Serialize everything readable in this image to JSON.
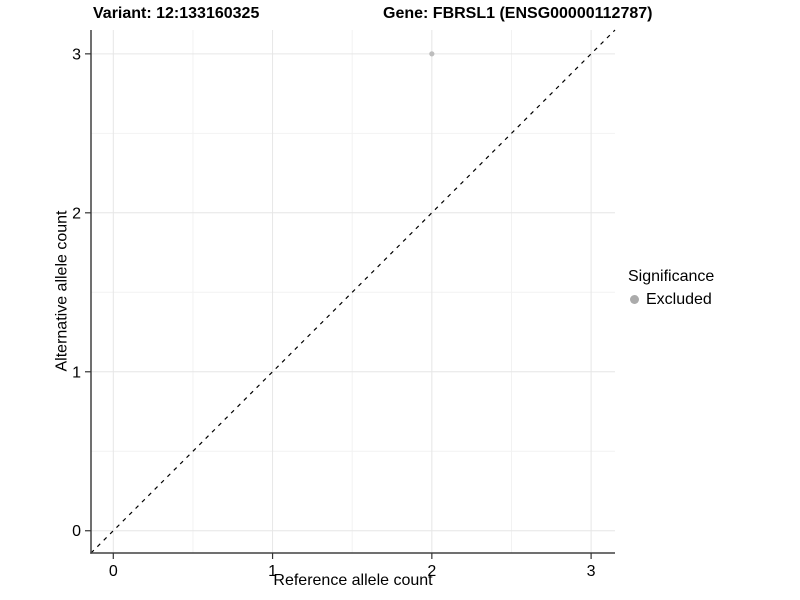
{
  "chart_data": {
    "type": "scatter",
    "title_left": "Variant: 12:133160325",
    "title_right": "Gene: FBRSL1 (ENSG00000112787)",
    "xlabel": "Reference allele count",
    "ylabel": "Alternative allele count",
    "xlim": [
      -0.14,
      3.15
    ],
    "ylim": [
      -0.14,
      3.15
    ],
    "x_major_ticks": [
      0,
      1,
      2,
      3
    ],
    "y_major_ticks": [
      0,
      1,
      2,
      3
    ],
    "x_minor_ticks": [
      0.5,
      1.5,
      2.5
    ],
    "y_minor_ticks": [
      0.5,
      1.5,
      2.5
    ],
    "grid": true,
    "reference_line": {
      "equation": "y = x",
      "style": "dashed",
      "color": "#000000"
    },
    "series": [
      {
        "name": "Excluded",
        "marker": "circle",
        "color": "#bdbdbd",
        "points": [
          {
            "x": 2,
            "y": 3
          }
        ]
      }
    ],
    "legend": {
      "title": "Significance",
      "position": "right",
      "items": [
        {
          "label": "Excluded",
          "color": "#ababab",
          "marker": "circle"
        }
      ]
    },
    "colors": {
      "background": "#ffffff",
      "grid_major": "#e6e6e6",
      "grid_minor": "#f2f2f2",
      "axis_line": "#404040",
      "tick": "#333333",
      "text": "#000000"
    }
  }
}
